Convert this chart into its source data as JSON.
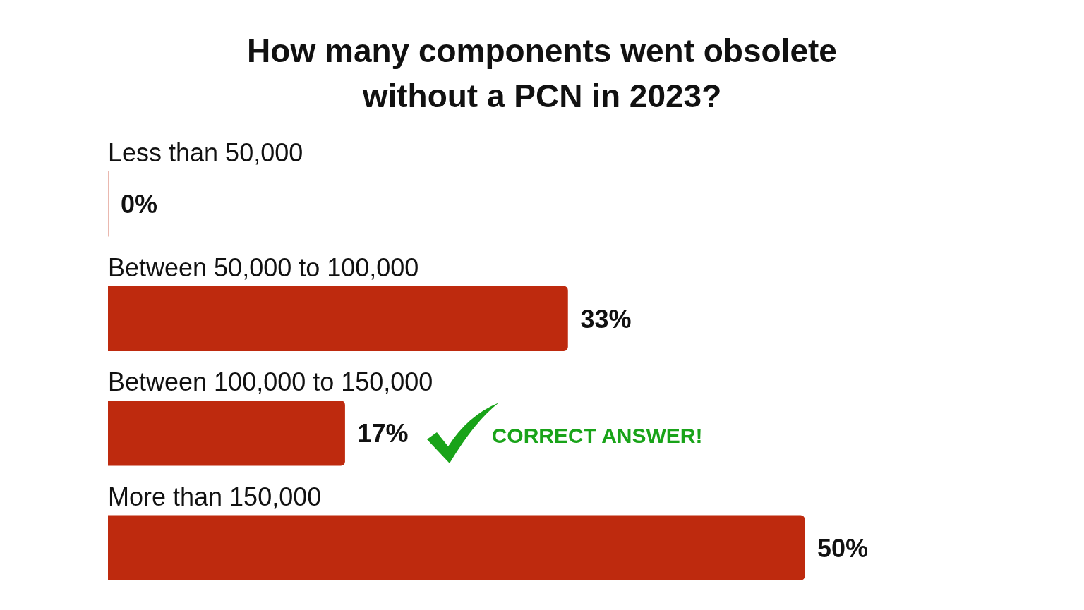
{
  "chart_data": {
    "type": "bar",
    "orientation": "horizontal",
    "title": "How many components went obsolete without a PCN in 2023?",
    "categories": [
      "Less than 50,000",
      "Between 50,000 to 100,000",
      "Between 100,000 to 150,000",
      "More than 150,000"
    ],
    "values": [
      0,
      33,
      17,
      50
    ],
    "value_labels": [
      "0%",
      "33%",
      "17%",
      "50%"
    ],
    "color": "#be2a0e",
    "annotations": [
      "CORRECT ANSWER!"
    ],
    "tick_labels": false
  }
}
